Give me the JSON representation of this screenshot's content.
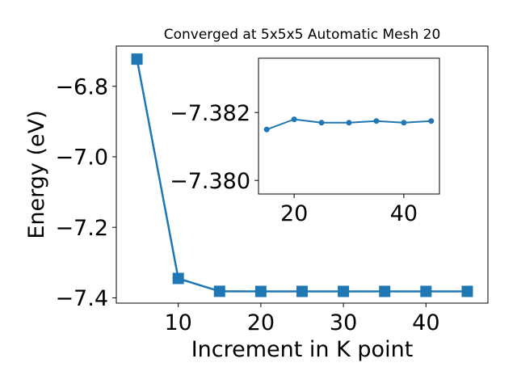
{
  "chart_data": [
    {
      "type": "line",
      "title": "Converged at 5x5x5 Automatic Mesh 20",
      "xlabel": "Increment in K point",
      "ylabel": "Energy (eV)",
      "x": [
        5,
        10,
        15,
        20,
        25,
        30,
        35,
        40,
        45
      ],
      "series": [
        {
          "values": [
            -6.723,
            -7.345,
            -7.3815,
            -7.3818,
            -7.3817,
            -7.3817,
            -7.3817,
            -7.3817,
            -7.3817
          ]
        }
      ],
      "xlim": [
        2.5,
        47.5
      ],
      "ylim": [
        -7.415,
        -6.686
      ],
      "xticks": [
        10,
        20,
        30,
        40
      ],
      "xtick_labels": [
        "10",
        "20",
        "30",
        "40"
      ],
      "yticks": [
        -7.4,
        -7.2,
        -7.0,
        -6.8
      ],
      "ytick_labels": [
        "−7.4",
        "−7.2",
        "−7.0",
        "−6.8"
      ],
      "marker": "square",
      "color": "#1f77b4",
      "grid": false
    },
    {
      "type": "line",
      "role": "inset",
      "x": [
        15,
        20,
        25,
        30,
        35,
        40,
        45
      ],
      "series": [
        {
          "values": [
            -7.3815,
            -7.3818,
            -7.3817,
            -7.3817,
            -7.38175,
            -7.3817,
            -7.38175
          ]
        }
      ],
      "xlim": [
        13.5,
        46.5
      ],
      "ylim": [
        -7.3796,
        -7.3836
      ],
      "xticks": [
        20,
        40
      ],
      "xtick_labels": [
        "20",
        "40"
      ],
      "yticks": [
        -7.382,
        -7.38
      ],
      "ytick_labels": [
        "−7.382",
        "−7.380"
      ],
      "marker": "circle",
      "color": "#1f77b4",
      "grid": false
    }
  ]
}
